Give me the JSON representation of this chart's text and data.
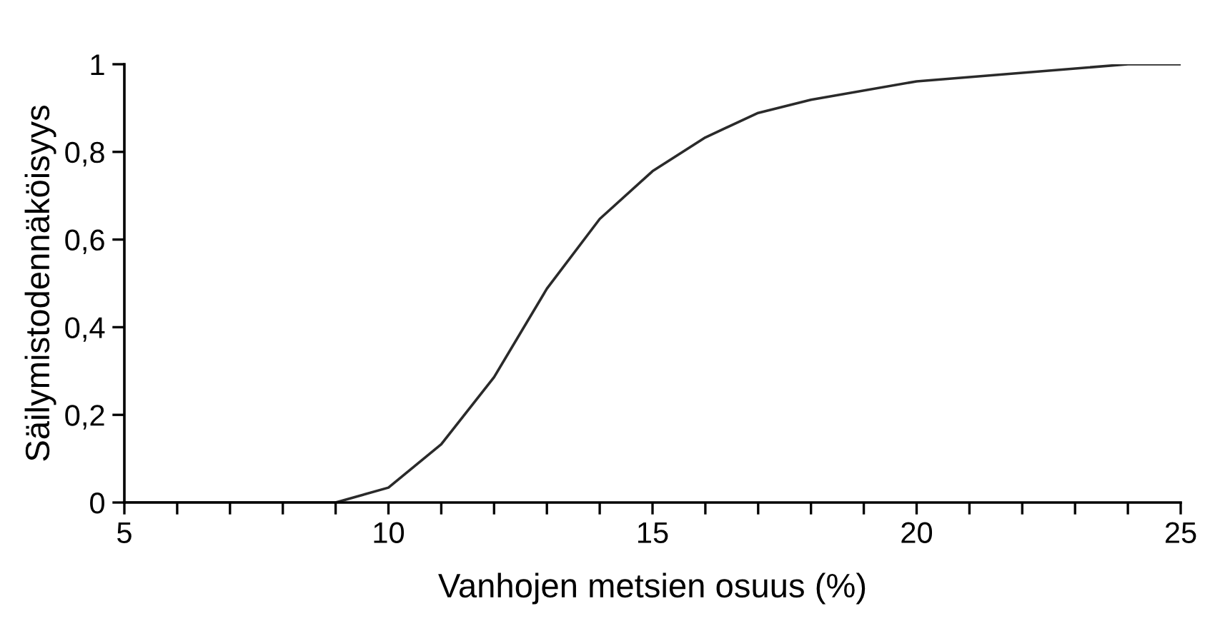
{
  "chart_data": {
    "type": "line",
    "xlabel": "Vanhojen metsien osuus (%)",
    "ylabel": "Säilymistodennäköisyys",
    "series": [
      {
        "color": "#2a2a2a",
        "x": [
          5,
          9,
          10,
          11,
          12,
          13,
          14,
          15,
          16,
          17,
          18,
          20,
          24,
          25
        ],
        "values": [
          0,
          0,
          0.034,
          0.133,
          0.286,
          0.488,
          0.647,
          0.756,
          0.833,
          0.889,
          0.919,
          0.961,
          1,
          1
        ]
      }
    ],
    "xlim": [
      5,
      25
    ],
    "ylim": [
      0,
      1
    ],
    "xticks": [
      5,
      {
        "value": 6,
        "label": null
      },
      {
        "value": 7,
        "label": null
      },
      {
        "value": 8,
        "label": null
      },
      {
        "value": 9,
        "label": null
      },
      10,
      {
        "value": 11,
        "label": null
      },
      {
        "value": 12,
        "label": null
      },
      {
        "value": 13,
        "label": null
      },
      {
        "value": 14,
        "label": null
      },
      15,
      {
        "value": 16,
        "label": null
      },
      {
        "value": 17,
        "label": null
      },
      {
        "value": 18,
        "label": null
      },
      {
        "value": 19,
        "label": null
      },
      20,
      {
        "value": 21,
        "label": null
      },
      {
        "value": 22,
        "label": null
      },
      {
        "value": 23,
        "label": null
      },
      {
        "value": 24,
        "label": null
      },
      25
    ],
    "yticks": [
      0,
      {
        "value": 0.2,
        "label": "0,2"
      },
      {
        "value": 0.4,
        "label": "0,4"
      },
      {
        "value": 0.6,
        "label": "0,6"
      },
      {
        "value": 0.8,
        "label": "0,8"
      },
      1
    ],
    "grid": false,
    "legend": false,
    "marker": "none",
    "line_style": "solid"
  }
}
